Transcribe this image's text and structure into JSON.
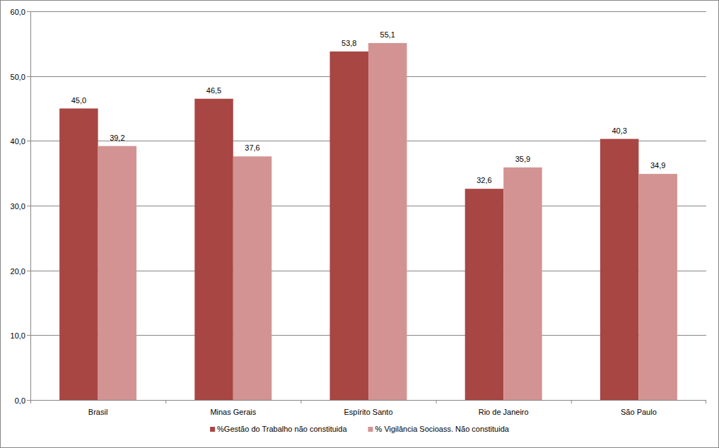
{
  "chart_data": {
    "type": "bar",
    "categories": [
      "Brasil",
      "Minas Gerais",
      "Espírito Santo",
      "Rio de Janeiro",
      "São Paulo"
    ],
    "series": [
      {
        "name": "%Gestão do Trabalho não constituida",
        "color": "#a84644",
        "values": [
          45.0,
          46.5,
          53.8,
          32.6,
          40.3
        ],
        "value_labels": [
          "45,0",
          "46,5",
          "53,8",
          "32,6",
          "40,3"
        ]
      },
      {
        "name": "% Vigilância Socioass. Não constituida",
        "color": "#d39393",
        "values": [
          39.2,
          37.6,
          55.1,
          35.9,
          34.9
        ],
        "value_labels": [
          "39,2",
          "37,6",
          "55,1",
          "35,9",
          "34,9"
        ]
      }
    ],
    "ylim": [
      0,
      60
    ],
    "yticks": [
      {
        "value": 0,
        "label": "0,0"
      },
      {
        "value": 10,
        "label": "10,0"
      },
      {
        "value": 20,
        "label": "20,0"
      },
      {
        "value": 30,
        "label": "30,0"
      },
      {
        "value": 40,
        "label": "40,0"
      },
      {
        "value": 50,
        "label": "50,0"
      },
      {
        "value": 60,
        "label": "60,0"
      }
    ],
    "grid": true,
    "data_labels": true,
    "legend": "bottom"
  }
}
